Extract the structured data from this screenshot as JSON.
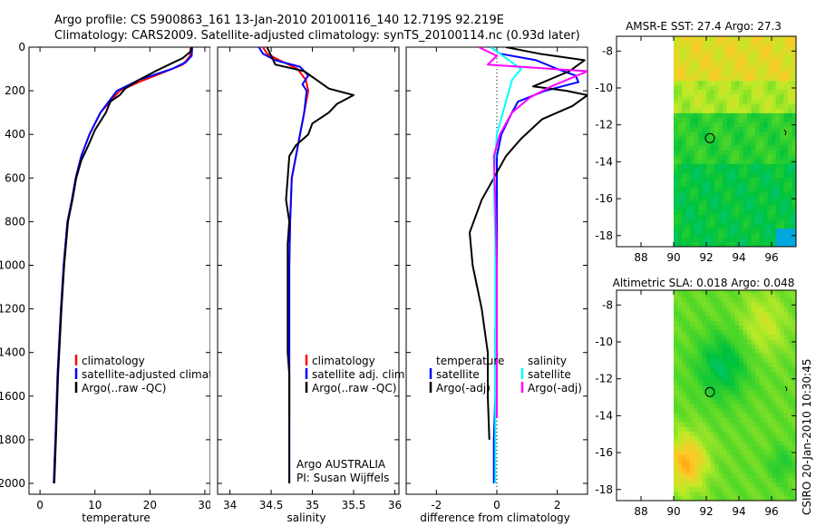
{
  "header": {
    "line1": "Argo profile: CS 5900863_161 13-Jan-2010 20100116_140 12.719S 92.219E",
    "line2": "Climatology: CARS2009. Satellite-adjusted climatology: synTS_20100114.nc (0.93d later)"
  },
  "side_label": "CSIRO 20-Jan-2010 10:30:45",
  "colors": {
    "red": "#ff0000",
    "blue": "#0000ff",
    "black": "#000000",
    "cyan": "#00ffff",
    "magenta": "#ff00ff"
  },
  "chart_data": [
    {
      "id": "temperature",
      "type": "line",
      "xlabel": "temperature",
      "ylabel": "",
      "xlim": [
        -2,
        31
      ],
      "ylim": [
        2050,
        0
      ],
      "xticks": [
        0,
        10,
        20,
        30
      ],
      "yticks": [
        0,
        200,
        400,
        600,
        800,
        1000,
        1200,
        1400,
        1600,
        1800,
        2000
      ],
      "legend": {
        "position": "lower-middle",
        "entries": [
          "climatology",
          "satellite-adjusted climatology",
          "Argo(..raw -QC)"
        ]
      },
      "series": [
        {
          "name": "climatology",
          "color": "#ff0000",
          "x": [
            27.4,
            27.3,
            26.0,
            22.0,
            18.0,
            14.5,
            11.0,
            9.0,
            7.5,
            6.5,
            5.8,
            5.0,
            4.3,
            3.8,
            3.2,
            2.8,
            2.5
          ],
          "y": [
            0,
            40,
            80,
            120,
            160,
            200,
            300,
            400,
            500,
            600,
            700,
            800,
            1000,
            1200,
            1500,
            1800,
            2000
          ]
        },
        {
          "name": "satellite-adjusted climatology",
          "color": "#0000ff",
          "x": [
            27.7,
            27.6,
            26.5,
            24.0,
            18.0,
            14.0,
            11.0,
            9.0,
            7.5,
            6.5,
            5.8,
            5.0,
            4.3,
            3.8,
            3.2,
            2.8,
            2.5
          ],
          "y": [
            0,
            40,
            70,
            100,
            150,
            200,
            300,
            400,
            500,
            600,
            700,
            800,
            1000,
            1200,
            1500,
            1800,
            2000
          ]
        },
        {
          "name": "Argo(..raw -QC)",
          "color": "#000000",
          "x": [
            27.6,
            27.4,
            26.0,
            23.5,
            21.0,
            18.0,
            15.5,
            14.5,
            12.8,
            12.0,
            10.0,
            8.8,
            7.5,
            6.6,
            5.9,
            5.1,
            4.4,
            3.9,
            3.3,
            2.9,
            2.6
          ],
          "y": [
            0,
            20,
            50,
            80,
            110,
            150,
            190,
            220,
            250,
            300,
            380,
            450,
            520,
            600,
            700,
            800,
            1000,
            1200,
            1500,
            1800,
            2000
          ]
        }
      ]
    },
    {
      "id": "salinity",
      "type": "line",
      "xlabel": "salinity",
      "ylabel": "",
      "xlim": [
        33.85,
        36.05
      ],
      "ylim": [
        2050,
        0
      ],
      "xticks": [
        34,
        34.5,
        35,
        35.5,
        36
      ],
      "xtick_labels": [
        "34",
        "34.5",
        "35",
        "35.5",
        "36"
      ],
      "legend": {
        "position": "lower-right",
        "entries": [
          "climatology",
          "satellite adj. clim.",
          "Argo(..raw -QC)"
        ]
      },
      "annotation": [
        "Argo AUSTRALIA",
        "PI: Susan Wijffels"
      ],
      "series": [
        {
          "name": "climatology",
          "color": "#ff0000",
          "x": [
            34.4,
            34.45,
            34.6,
            34.82,
            34.92,
            34.95,
            34.9,
            34.85,
            34.8,
            34.75,
            34.73,
            34.72,
            34.72,
            34.72,
            34.72,
            34.72
          ],
          "y": [
            0,
            30,
            60,
            100,
            150,
            200,
            300,
            400,
            500,
            600,
            800,
            1000,
            1200,
            1400,
            1600,
            1700
          ]
        },
        {
          "name": "satellite adj. clim.",
          "color": "#0000ff",
          "x": [
            34.35,
            34.4,
            34.55,
            34.85,
            34.95,
            34.88,
            34.93,
            34.9,
            34.85,
            34.8,
            34.75,
            34.73,
            34.72,
            34.72,
            34.72,
            34.72,
            34.72,
            34.72
          ],
          "y": [
            0,
            30,
            60,
            90,
            130,
            170,
            200,
            300,
            400,
            500,
            600,
            800,
            1000,
            1200,
            1400,
            1600,
            1800,
            2000
          ]
        },
        {
          "name": "Argo(..raw -QC)",
          "color": "#000000",
          "x": [
            34.45,
            34.5,
            34.55,
            34.9,
            35.05,
            35.2,
            35.5,
            35.3,
            35.2,
            35.0,
            34.95,
            34.8,
            34.72,
            34.7,
            34.68,
            34.72,
            34.7,
            34.7,
            34.7,
            34.7,
            34.7,
            34.72,
            34.72,
            34.72,
            34.72,
            34.72
          ],
          "y": [
            0,
            40,
            80,
            110,
            150,
            190,
            220,
            260,
            300,
            350,
            400,
            450,
            500,
            600,
            700,
            800,
            900,
            1000,
            1100,
            1200,
            1400,
            1500,
            1600,
            1800,
            1900,
            2000
          ]
        }
      ]
    },
    {
      "id": "difference",
      "type": "line",
      "xlabel": "difference from climatology",
      "ylabel": "",
      "xlim": [
        -3.0,
        3.0
      ],
      "ylim": [
        2050,
        0
      ],
      "xticks": [
        -2,
        0,
        2
      ],
      "legend": {
        "position": "lower",
        "entries": [
          "temperature",
          "satellite",
          "Argo(-adj)",
          "salinity",
          "satellite",
          "Argo(-adj)"
        ]
      },
      "series": [
        {
          "name": "temperature satellite",
          "color": "#0000ff",
          "x": [
            -0.2,
            0.1,
            1.3,
            2.0,
            2.6,
            2.7,
            1.6,
            0.7,
            0.5,
            0.15,
            0.0,
            0.0,
            0.0,
            -0.05,
            -0.05,
            -0.1,
            -0.1
          ],
          "y": [
            0,
            30,
            60,
            100,
            130,
            160,
            200,
            250,
            300,
            400,
            500,
            800,
            1000,
            1300,
            1600,
            1800,
            2000
          ]
        },
        {
          "name": "temperature Argo(-adj)",
          "color": "#000000",
          "x": [
            0.3,
            1.4,
            2.9,
            2.4,
            1.2,
            2.3,
            3.0,
            2.5,
            1.5,
            0.8,
            0.3,
            -0.1,
            -0.5,
            -0.9,
            -0.8,
            -0.5,
            -0.3,
            -0.3,
            -0.25
          ],
          "y": [
            0,
            30,
            60,
            110,
            180,
            200,
            220,
            270,
            330,
            420,
            500,
            600,
            700,
            850,
            1000,
            1200,
            1400,
            1600,
            1800
          ]
        },
        {
          "name": "salinity satellite",
          "color": "#00ffff",
          "x": [
            -0.2,
            0.3,
            0.8,
            0.5,
            0.3,
            0.0,
            -0.1,
            -0.05,
            -0.05,
            -0.05,
            -0.05,
            -0.05
          ],
          "y": [
            0,
            50,
            100,
            150,
            250,
            400,
            600,
            900,
            1200,
            1500,
            1800,
            2000
          ]
        },
        {
          "name": "salinity Argo(-adj)",
          "color": "#ff00ff",
          "x": [
            -0.6,
            0.0,
            -0.3,
            3.0,
            1.8,
            1.1,
            0.5,
            0.1,
            -0.1,
            -0.05,
            0.0,
            0.0,
            0.0
          ],
          "y": [
            0,
            40,
            80,
            110,
            180,
            230,
            300,
            400,
            500,
            700,
            1000,
            1300,
            1700
          ]
        }
      ]
    },
    {
      "id": "sst_map",
      "type": "heatmap",
      "title": "AMSR-E SST: 27.4 Argo: 27.3",
      "xlim": [
        86.5,
        97.5
      ],
      "ylim": [
        -18.6,
        -7.2
      ],
      "xticks": [
        88,
        90,
        92,
        94,
        96
      ],
      "yticks": [
        -8,
        -10,
        -12,
        -14,
        -16,
        -18
      ],
      "data_lon_range": [
        90,
        97.5
      ],
      "marker": {
        "lon": 92.22,
        "lat": -12.72
      }
    },
    {
      "id": "sla_map",
      "type": "heatmap",
      "title": "Altimetric SLA: 0.018 Argo: 0.048",
      "xlim": [
        86.5,
        97.5
      ],
      "ylim": [
        -18.6,
        -7.2
      ],
      "xticks": [
        88,
        90,
        92,
        94,
        96
      ],
      "yticks": [
        -8,
        -10,
        -12,
        -14,
        -16,
        -18
      ],
      "data_lon_range": [
        90,
        97.5
      ],
      "marker": {
        "lon": 92.22,
        "lat": -12.72
      }
    }
  ]
}
